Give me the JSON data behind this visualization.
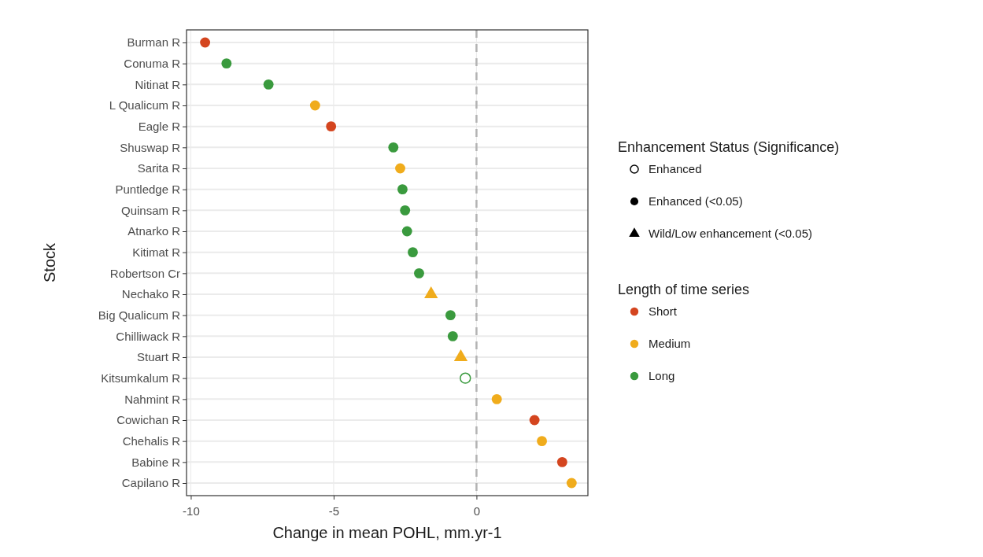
{
  "chart_data": {
    "type": "scatter",
    "orientation": "horizontal",
    "xlabel": "Change in mean POHL, mm.yr-1",
    "ylabel": "Stock",
    "categories": [
      "Burman R",
      "Conuma R",
      "Nitinat R",
      "L Qualicum R",
      "Eagle R",
      "Shuswap R",
      "Sarita R",
      "Puntledge R",
      "Quinsam R",
      "Atnarko R",
      "Kitimat R",
      "Robertson Cr",
      "Nechako R",
      "Big Qualicum R",
      "Chilliwack R",
      "Stuart R",
      "Kitsumkalum R",
      "Nahmint R",
      "Cowichan R",
      "Chehalis R",
      "Babine R",
      "Capilano R"
    ],
    "xlim": [
      -10.15,
      3.9
    ],
    "xticks": [
      -10,
      -5,
      0
    ],
    "grid": true,
    "legend": "right",
    "legend_title": "Length of time series",
    "annotations": [
      "Enhancement Status (Significance)",
      "Enhanced",
      "Enhanced (<0.05)",
      "Wild/Low enhancement (<0.05)"
    ],
    "ref_lines": [
      {
        "axis": "x",
        "value": 0,
        "color": "#b3b3b3",
        "line_style": "dashed"
      }
    ],
    "series": [
      {
        "name": "Short",
        "color": "#d4451f",
        "marker": "circle",
        "values": [
          -9.5,
          null,
          null,
          null,
          -5.09,
          null,
          null,
          null,
          null,
          null,
          null,
          null,
          null,
          null,
          null,
          null,
          null,
          null,
          2.03,
          null,
          3.0,
          null
        ]
      },
      {
        "name": "Medium",
        "color": "#f0ac1c",
        "marker": "circle",
        "values": [
          null,
          null,
          null,
          -5.65,
          null,
          null,
          -2.67,
          null,
          null,
          null,
          null,
          null,
          null,
          null,
          null,
          null,
          null,
          0.71,
          null,
          2.29,
          null,
          3.33
        ]
      },
      {
        "color": "#f0ac1c",
        "marker": "triangle",
        "values": [
          null,
          null,
          null,
          null,
          null,
          null,
          null,
          null,
          null,
          null,
          null,
          null,
          -1.59,
          null,
          null,
          -0.55,
          null,
          null,
          null,
          null,
          null,
          null
        ]
      },
      {
        "name": "Long",
        "color": "#3a9a3e",
        "marker": "circle",
        "values": [
          null,
          -8.75,
          -7.28,
          null,
          null,
          -2.91,
          null,
          -2.59,
          -2.5,
          -2.43,
          -2.23,
          -2.01,
          null,
          -0.91,
          -0.83,
          null,
          null,
          null,
          null,
          null,
          null,
          null
        ]
      },
      {
        "color": "#3a9a3e",
        "marker": "circle-open",
        "values": [
          null,
          null,
          null,
          null,
          null,
          null,
          null,
          null,
          null,
          null,
          null,
          null,
          null,
          null,
          null,
          null,
          -0.39,
          null,
          null,
          null,
          null,
          null
        ]
      }
    ]
  }
}
